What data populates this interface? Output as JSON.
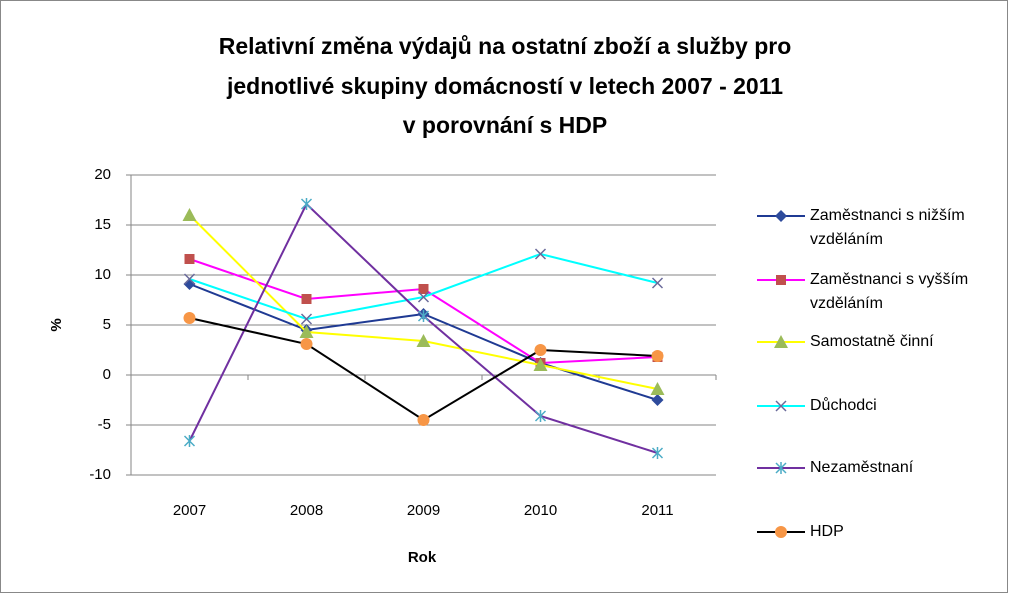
{
  "chart_data": {
    "type": "line",
    "title": [
      "Relativní změna výdajů na ostatní zboží a služby pro",
      "jednotlivé skupiny domácností v letech 2007 - 2011",
      "v porovnání s HDP"
    ],
    "x_label": "Rok",
    "y_label": "%",
    "categories": [
      "2007",
      "2008",
      "2009",
      "2010",
      "2011"
    ],
    "ylim": [
      -10,
      20
    ],
    "yticks": [
      -10,
      -5,
      0,
      5,
      10,
      15,
      20
    ],
    "grid": true,
    "legend": "right",
    "series": [
      {
        "name": "Zaměstnanci s nižším vzděláním",
        "color": "#1F3A93",
        "marker": "diamond",
        "marker_color": "#2E4B9C",
        "values": [
          9.1,
          4.5,
          6.1,
          1.2,
          -2.5
        ]
      },
      {
        "name": "Zaměstnanci s vyšším vzděláním",
        "color": "#FF00FF",
        "marker": "square",
        "marker_color": "#C0504D",
        "values": [
          11.6,
          7.6,
          8.6,
          1.2,
          1.8
        ]
      },
      {
        "name": "Samostatně činní",
        "color": "#FFFF00",
        "marker": "triangle",
        "marker_color": "#9BBB59",
        "values": [
          16,
          4.3,
          3.4,
          1.0,
          -1.4
        ]
      },
      {
        "name": "Důchodci",
        "color": "#00FFFF",
        "marker": "x",
        "marker_color": "#6A6A9A",
        "values": [
          9.6,
          5.6,
          7.8,
          12.1,
          9.2
        ]
      },
      {
        "name": "Nezaměstnaní",
        "color": "#7030A0",
        "marker": "star",
        "marker_color": "#4BACC6",
        "values": [
          -6.6,
          17.1,
          5.9,
          -4.1,
          -7.8
        ]
      },
      {
        "name": "HDP",
        "color": "#000000",
        "marker": "circle",
        "marker_color": "#F79646",
        "values": [
          5.7,
          3.1,
          -4.5,
          2.5,
          1.9
        ]
      }
    ]
  }
}
